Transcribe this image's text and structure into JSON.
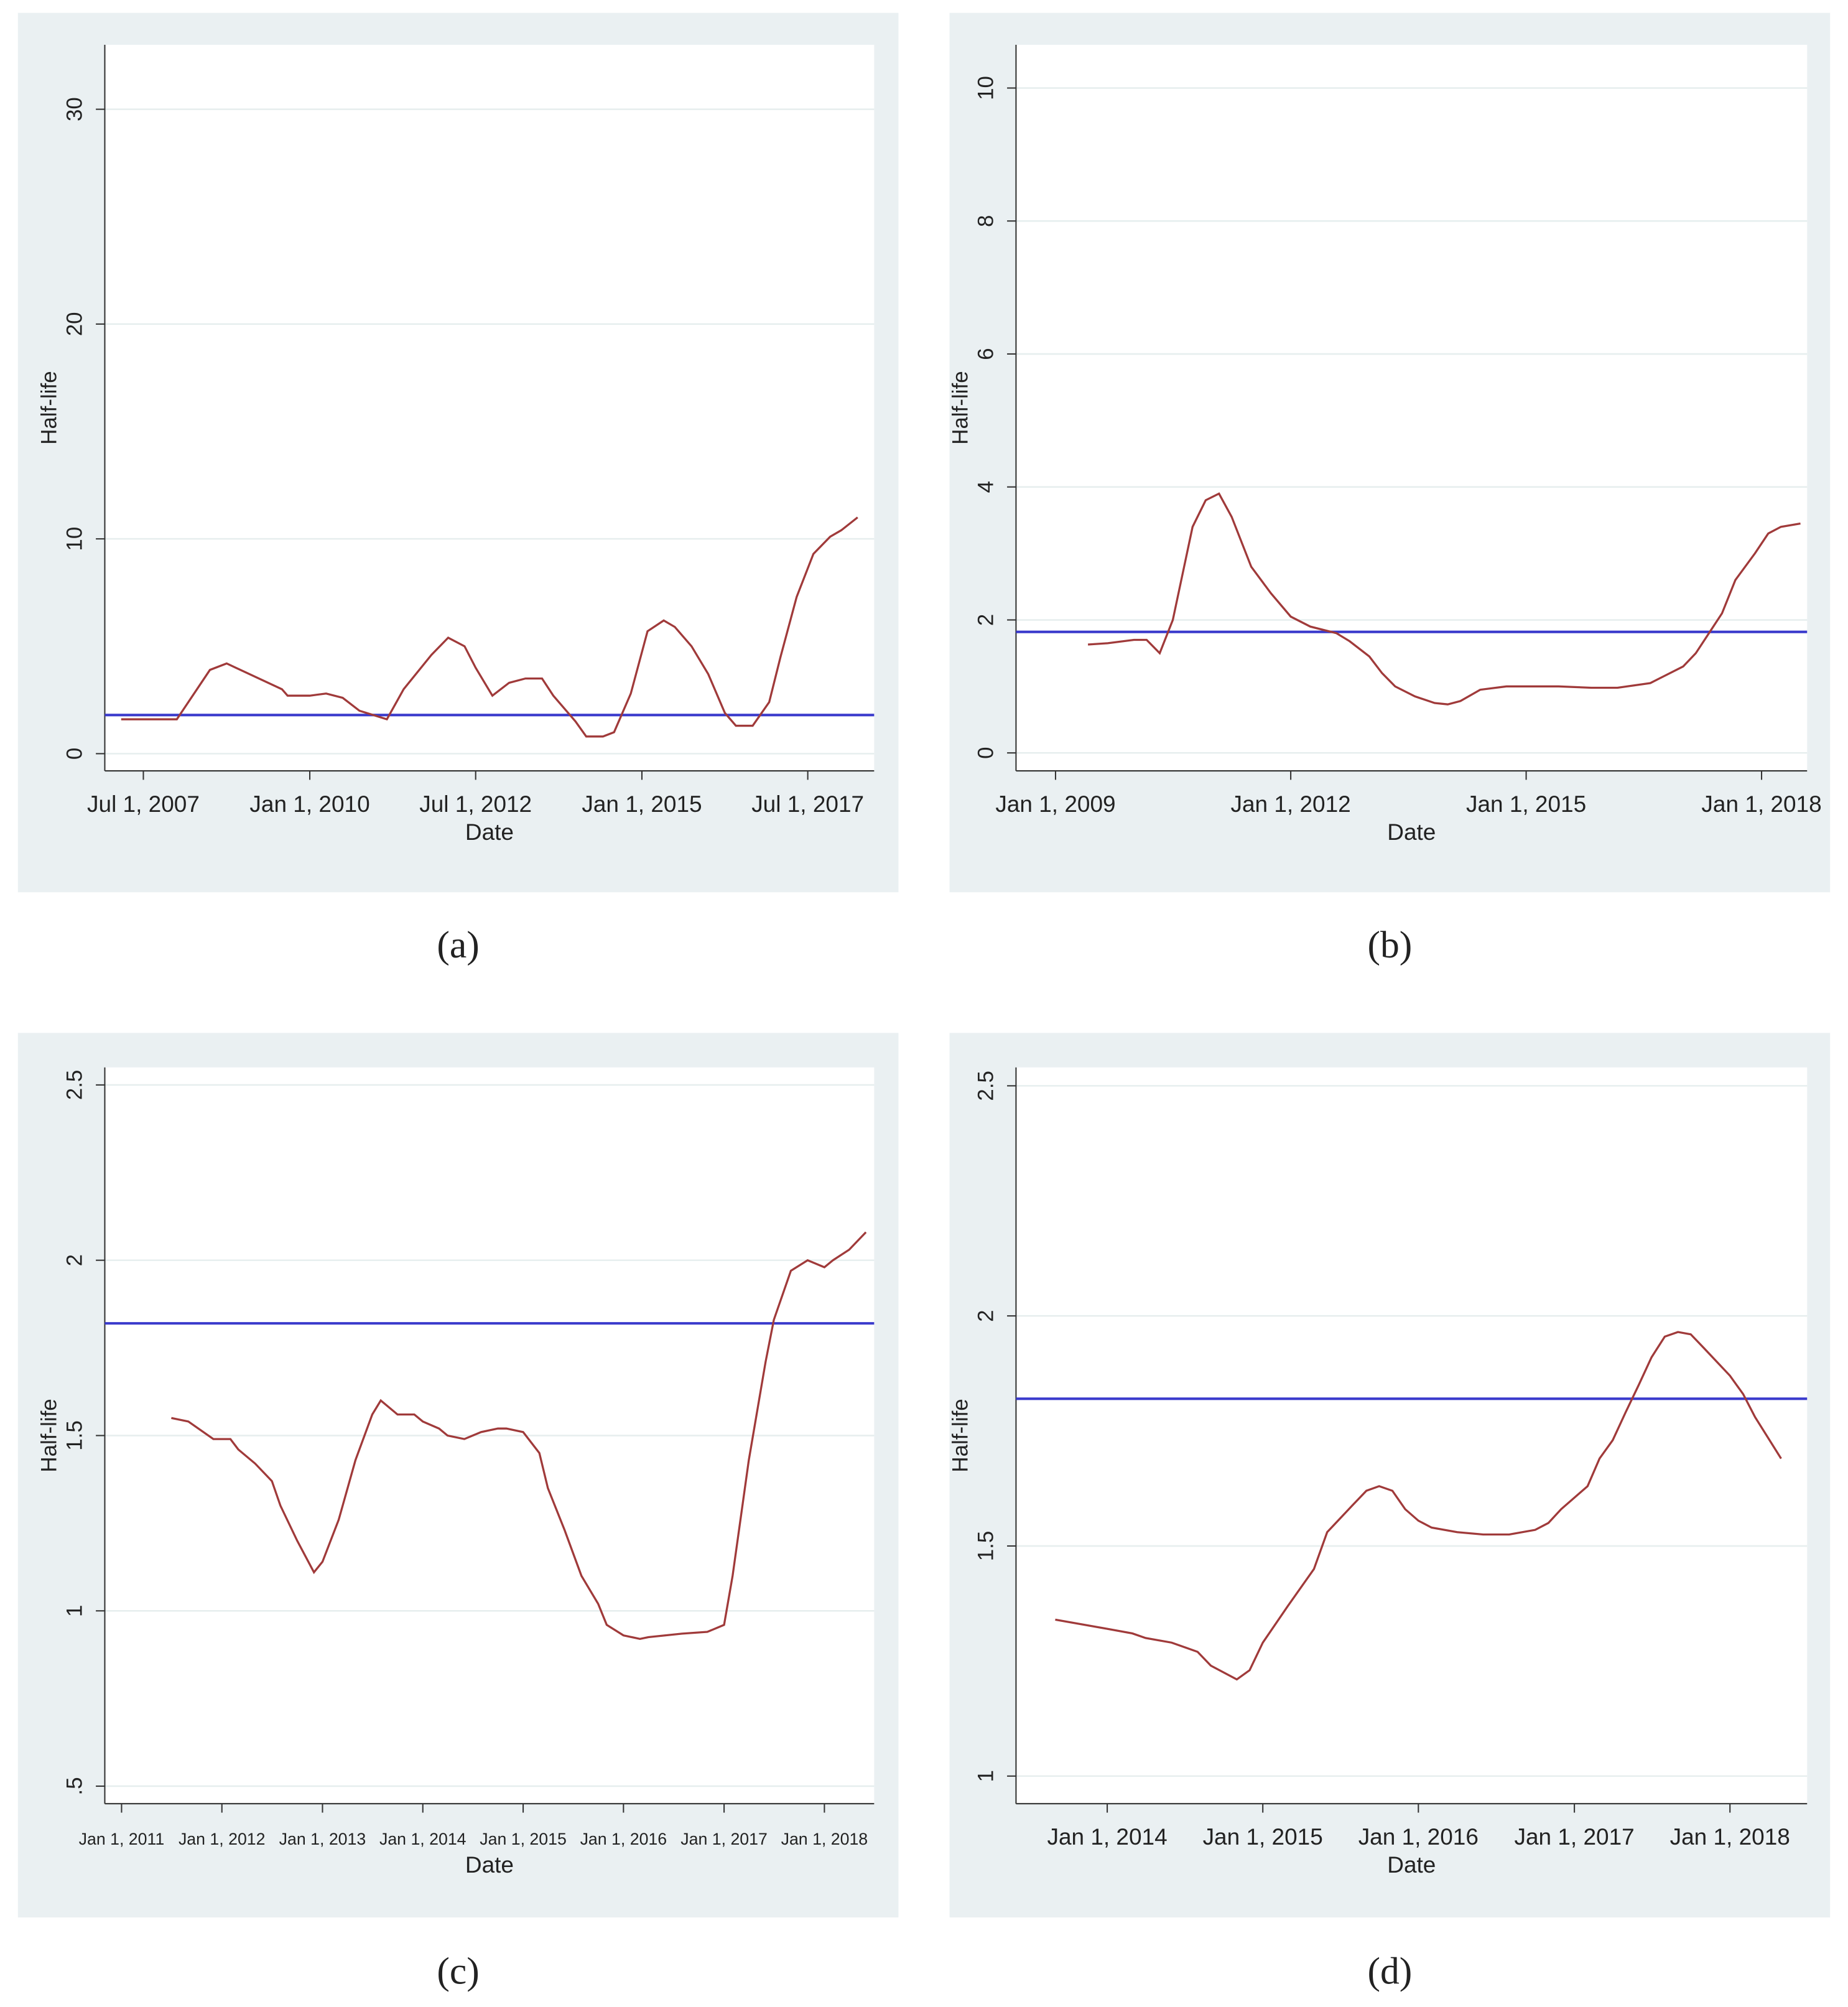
{
  "chart_data": [
    {
      "type": "line",
      "caption": "(a)",
      "x_label": "Date",
      "y_label": "Half-life",
      "color": "#a03a3a",
      "grid": true,
      "reference_line": {
        "value": 1.8,
        "color": "#3a3acc"
      },
      "xlim": [
        "2006-12-01",
        "2018-07-01"
      ],
      "ylim": [
        -0.8,
        33
      ],
      "xticks": [
        {
          "value": "2007-07-01",
          "label": "Jul 1, 2007"
        },
        {
          "value": "2010-01-01",
          "label": "Jan 1, 2010"
        },
        {
          "value": "2012-07-01",
          "label": "Jul 1, 2012"
        },
        {
          "value": "2015-01-01",
          "label": "Jan 1, 2015"
        },
        {
          "value": "2017-07-01",
          "label": "Jul 1, 2017"
        }
      ],
      "yticks": [
        0,
        10,
        20,
        30
      ],
      "x": [
        "2007-03-01",
        "2008-01-01",
        "2008-07-01",
        "2008-10-01",
        "2009-08-01",
        "2009-09-01",
        "2010-01-01",
        "2010-04-01",
        "2010-07-01",
        "2010-10-01",
        "2011-03-01",
        "2011-06-01",
        "2011-11-01",
        "2012-02-01",
        "2012-05-01",
        "2012-07-01",
        "2012-10-01",
        "2013-01-01",
        "2013-04-01",
        "2013-07-01",
        "2013-09-01",
        "2014-01-01",
        "2014-03-01",
        "2014-06-01",
        "2014-08-01",
        "2014-11-01",
        "2015-02-01",
        "2015-05-01",
        "2015-07-01",
        "2015-10-01",
        "2016-01-01",
        "2016-04-01",
        "2016-06-01",
        "2016-09-01",
        "2016-12-01",
        "2017-02-01",
        "2017-05-01",
        "2017-08-01",
        "2017-11-01",
        "2018-01-01",
        "2018-04-01"
      ],
      "values": [
        1.6,
        1.6,
        3.9,
        4.2,
        3.0,
        2.7,
        2.7,
        2.8,
        2.6,
        2.0,
        1.6,
        3.0,
        4.6,
        5.4,
        5.0,
        4.0,
        2.7,
        3.3,
        3.5,
        3.5,
        2.7,
        1.5,
        0.8,
        0.8,
        1.0,
        2.8,
        5.7,
        6.2,
        5.9,
        5.0,
        3.7,
        1.9,
        1.3,
        1.3,
        2.4,
        4.5,
        7.3,
        9.3,
        10.1,
        10.4,
        11.0
      ]
    },
    {
      "type": "line",
      "caption": "(b)",
      "x_label": "Date",
      "y_label": "Half-life",
      "color": "#a03a3a",
      "grid": true,
      "reference_line": {
        "value": 1.82,
        "color": "#3a3acc"
      },
      "xlim": [
        "2008-07-01",
        "2018-08-01"
      ],
      "ylim": [
        -0.27,
        10.65
      ],
      "xticks": [
        {
          "value": "2009-01-01",
          "label": "Jan 1, 2009"
        },
        {
          "value": "2012-01-01",
          "label": "Jan 1, 2012"
        },
        {
          "value": "2015-01-01",
          "label": "Jan 1, 2015"
        },
        {
          "value": "2018-01-01",
          "label": "Jan 1, 2018"
        }
      ],
      "yticks": [
        0,
        2,
        4,
        6,
        8,
        10
      ],
      "x": [
        "2009-06-01",
        "2009-09-01",
        "2010-01-01",
        "2010-03-01",
        "2010-05-01",
        "2010-07-01",
        "2010-10-01",
        "2010-12-01",
        "2011-02-01",
        "2011-04-01",
        "2011-07-01",
        "2011-10-01",
        "2012-01-01",
        "2012-04-01",
        "2012-08-01",
        "2012-10-01",
        "2013-01-01",
        "2013-03-01",
        "2013-05-01",
        "2013-08-01",
        "2013-11-01",
        "2014-01-01",
        "2014-03-01",
        "2014-06-01",
        "2014-10-01",
        "2015-02-01",
        "2015-06-01",
        "2015-11-01",
        "2016-03-01",
        "2016-08-01",
        "2016-10-01",
        "2017-01-01",
        "2017-03-01",
        "2017-05-01",
        "2017-07-01",
        "2017-09-01",
        "2017-12-01",
        "2018-02-01",
        "2018-04-01",
        "2018-07-01"
      ],
      "values": [
        1.63,
        1.65,
        1.7,
        1.7,
        1.5,
        2.0,
        3.4,
        3.8,
        3.9,
        3.55,
        2.8,
        2.4,
        2.05,
        1.9,
        1.8,
        1.68,
        1.45,
        1.2,
        1.0,
        0.85,
        0.75,
        0.73,
        0.78,
        0.95,
        1.0,
        1.0,
        1.0,
        0.98,
        0.98,
        1.05,
        1.15,
        1.3,
        1.5,
        1.8,
        2.1,
        2.6,
        3.0,
        3.3,
        3.4,
        3.45
      ]
    },
    {
      "type": "line",
      "caption": "(c)",
      "x_label": "Date",
      "y_label": "Half-life",
      "color": "#a03a3a",
      "grid": true,
      "reference_line": {
        "value": 1.82,
        "color": "#3a3acc"
      },
      "xlim": [
        "2010-11-01",
        "2018-07-01"
      ],
      "ylim": [
        0.45,
        2.55
      ],
      "xticks": [
        {
          "value": "2011-01-01",
          "label": "Jan 1, 2011"
        },
        {
          "value": "2012-01-01",
          "label": "Jan 1, 2012"
        },
        {
          "value": "2013-01-01",
          "label": "Jan 1, 2013"
        },
        {
          "value": "2014-01-01",
          "label": "Jan 1, 2014"
        },
        {
          "value": "2015-01-01",
          "label": "Jan 1, 2015"
        },
        {
          "value": "2016-01-01",
          "label": "Jan 1, 2016"
        },
        {
          "value": "2017-01-01",
          "label": "Jan 1, 2017"
        },
        {
          "value": "2018-01-01",
          "label": "Jan 1, 2018"
        }
      ],
      "yticks": [
        {
          "value": 0.5,
          "label": ".5"
        },
        1,
        1.5,
        2,
        2.5
      ],
      "x": [
        "2011-07-01",
        "2011-09-01",
        "2011-12-01",
        "2012-02-01",
        "2012-03-01",
        "2012-05-01",
        "2012-07-01",
        "2012-08-01",
        "2012-10-01",
        "2012-12-01",
        "2013-01-01",
        "2013-03-01",
        "2013-05-01",
        "2013-07-01",
        "2013-08-01",
        "2013-10-01",
        "2013-12-01",
        "2014-01-01",
        "2014-03-01",
        "2014-04-01",
        "2014-06-01",
        "2014-08-01",
        "2014-10-01",
        "2014-11-01",
        "2015-01-01",
        "2015-03-01",
        "2015-04-01",
        "2015-06-01",
        "2015-08-01",
        "2015-10-01",
        "2015-11-01",
        "2016-01-01",
        "2016-03-01",
        "2016-04-01",
        "2016-08-01",
        "2016-11-01",
        "2017-01-01",
        "2017-02-01",
        "2017-04-01",
        "2017-06-01",
        "2017-07-01",
        "2017-09-01",
        "2017-11-01",
        "2018-01-01",
        "2018-02-01",
        "2018-04-01",
        "2018-06-01"
      ],
      "values": [
        1.55,
        1.54,
        1.49,
        1.49,
        1.46,
        1.42,
        1.37,
        1.3,
        1.2,
        1.11,
        1.14,
        1.26,
        1.43,
        1.56,
        1.6,
        1.56,
        1.56,
        1.54,
        1.52,
        1.5,
        1.49,
        1.51,
        1.52,
        1.52,
        1.51,
        1.45,
        1.35,
        1.23,
        1.1,
        1.02,
        0.96,
        0.93,
        0.92,
        0.925,
        0.935,
        0.94,
        0.96,
        1.1,
        1.43,
        1.71,
        1.83,
        1.97,
        2.0,
        1.98,
        2.0,
        2.03,
        2.08
      ]
    },
    {
      "type": "line",
      "caption": "(d)",
      "x_label": "Date",
      "y_label": "Half-life",
      "color": "#a03a3a",
      "grid": true,
      "reference_line": {
        "value": 1.82,
        "color": "#3a3acc"
      },
      "xlim": [
        "2013-06-01",
        "2018-07-01"
      ],
      "ylim": [
        0.94,
        2.54
      ],
      "xticks": [
        {
          "value": "2014-01-01",
          "label": "Jan 1, 2014"
        },
        {
          "value": "2015-01-01",
          "label": "Jan 1, 2015"
        },
        {
          "value": "2016-01-01",
          "label": "Jan 1, 2016"
        },
        {
          "value": "2017-01-01",
          "label": "Jan 1, 2017"
        },
        {
          "value": "2018-01-01",
          "label": "Jan 1, 2018"
        }
      ],
      "yticks": [
        1,
        1.5,
        2,
        2.5
      ],
      "x": [
        "2013-09-01",
        "2013-11-01",
        "2014-01-01",
        "2014-03-01",
        "2014-04-01",
        "2014-06-01",
        "2014-08-01",
        "2014-09-01",
        "2014-11-01",
        "2014-12-01",
        "2015-01-01",
        "2015-03-01",
        "2015-05-01",
        "2015-06-01",
        "2015-08-01",
        "2015-09-01",
        "2015-10-01",
        "2015-11-01",
        "2015-12-01",
        "2016-01-01",
        "2016-02-01",
        "2016-04-01",
        "2016-06-01",
        "2016-08-01",
        "2016-10-01",
        "2016-11-01",
        "2016-12-01",
        "2017-02-01",
        "2017-03-01",
        "2017-04-01",
        "2017-05-01",
        "2017-06-01",
        "2017-07-01",
        "2017-08-01",
        "2017-09-01",
        "2017-10-01",
        "2017-11-01",
        "2018-01-01",
        "2018-02-01",
        "2018-03-01",
        "2018-05-01"
      ],
      "values": [
        1.34,
        1.33,
        1.32,
        1.31,
        1.3,
        1.29,
        1.27,
        1.24,
        1.21,
        1.23,
        1.29,
        1.37,
        1.45,
        1.53,
        1.59,
        1.62,
        1.63,
        1.62,
        1.58,
        1.555,
        1.54,
        1.53,
        1.525,
        1.525,
        1.535,
        1.55,
        1.58,
        1.63,
        1.69,
        1.73,
        1.79,
        1.85,
        1.91,
        1.955,
        1.965,
        1.96,
        1.93,
        1.87,
        1.83,
        1.78,
        1.69
      ]
    }
  ]
}
